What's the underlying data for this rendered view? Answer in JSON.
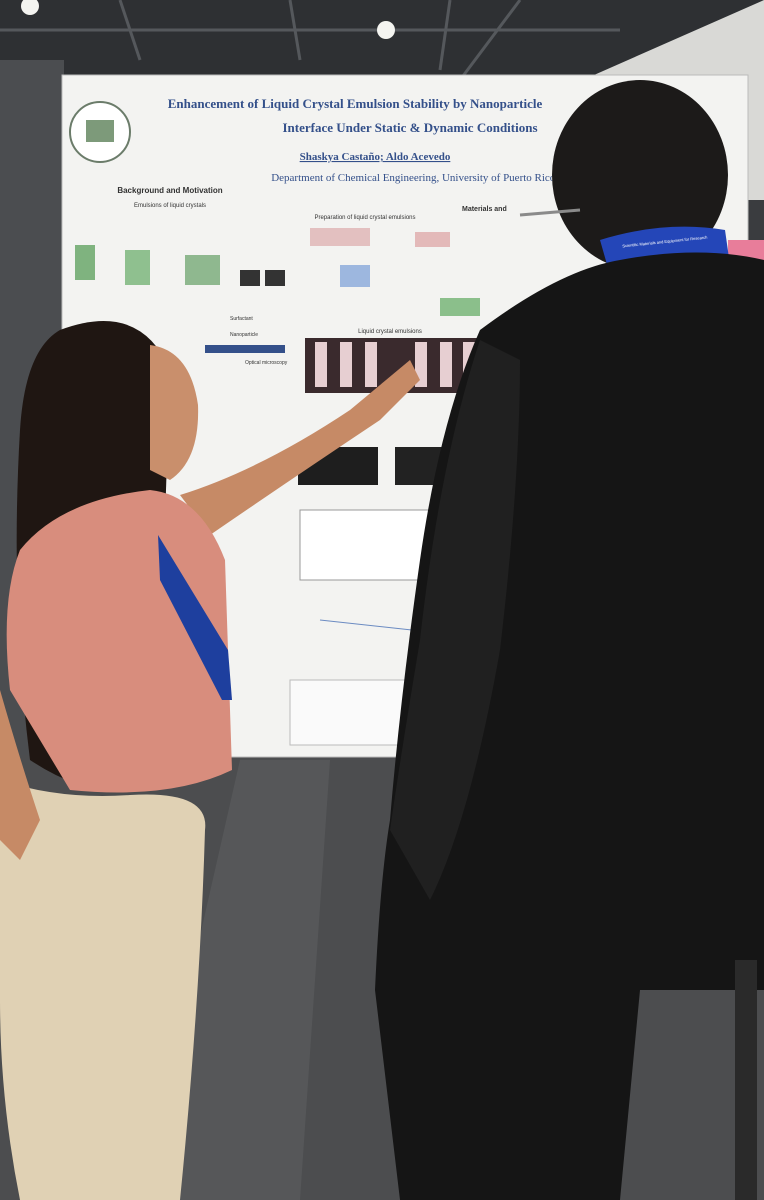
{
  "poster": {
    "title_line1": "Enhancement of Liquid Crystal Emulsion Stability by Nanoparticle",
    "title_line2": "Interface Under Static & Dynamic Conditions",
    "authors": "Shaskya Castaño; Aldo Acevedo",
    "affiliation": "Department of Chemical Engineering, University of Puerto Rico-M",
    "sections": {
      "background": "Background and Motivation",
      "emulsions": "Emulsions of liquid crystals",
      "materials": "Materials and",
      "preparation": "Preparation of liquid crystal emulsions",
      "lc_emulsions": "Liquid crystal emulsions",
      "surfactant": "Surfactant",
      "nanoparticle": "Nanoparticle",
      "microscopy": "Optical microscopy"
    }
  },
  "badge": {
    "lanyard_text": "Scientific Materials and Equipment for Research"
  }
}
